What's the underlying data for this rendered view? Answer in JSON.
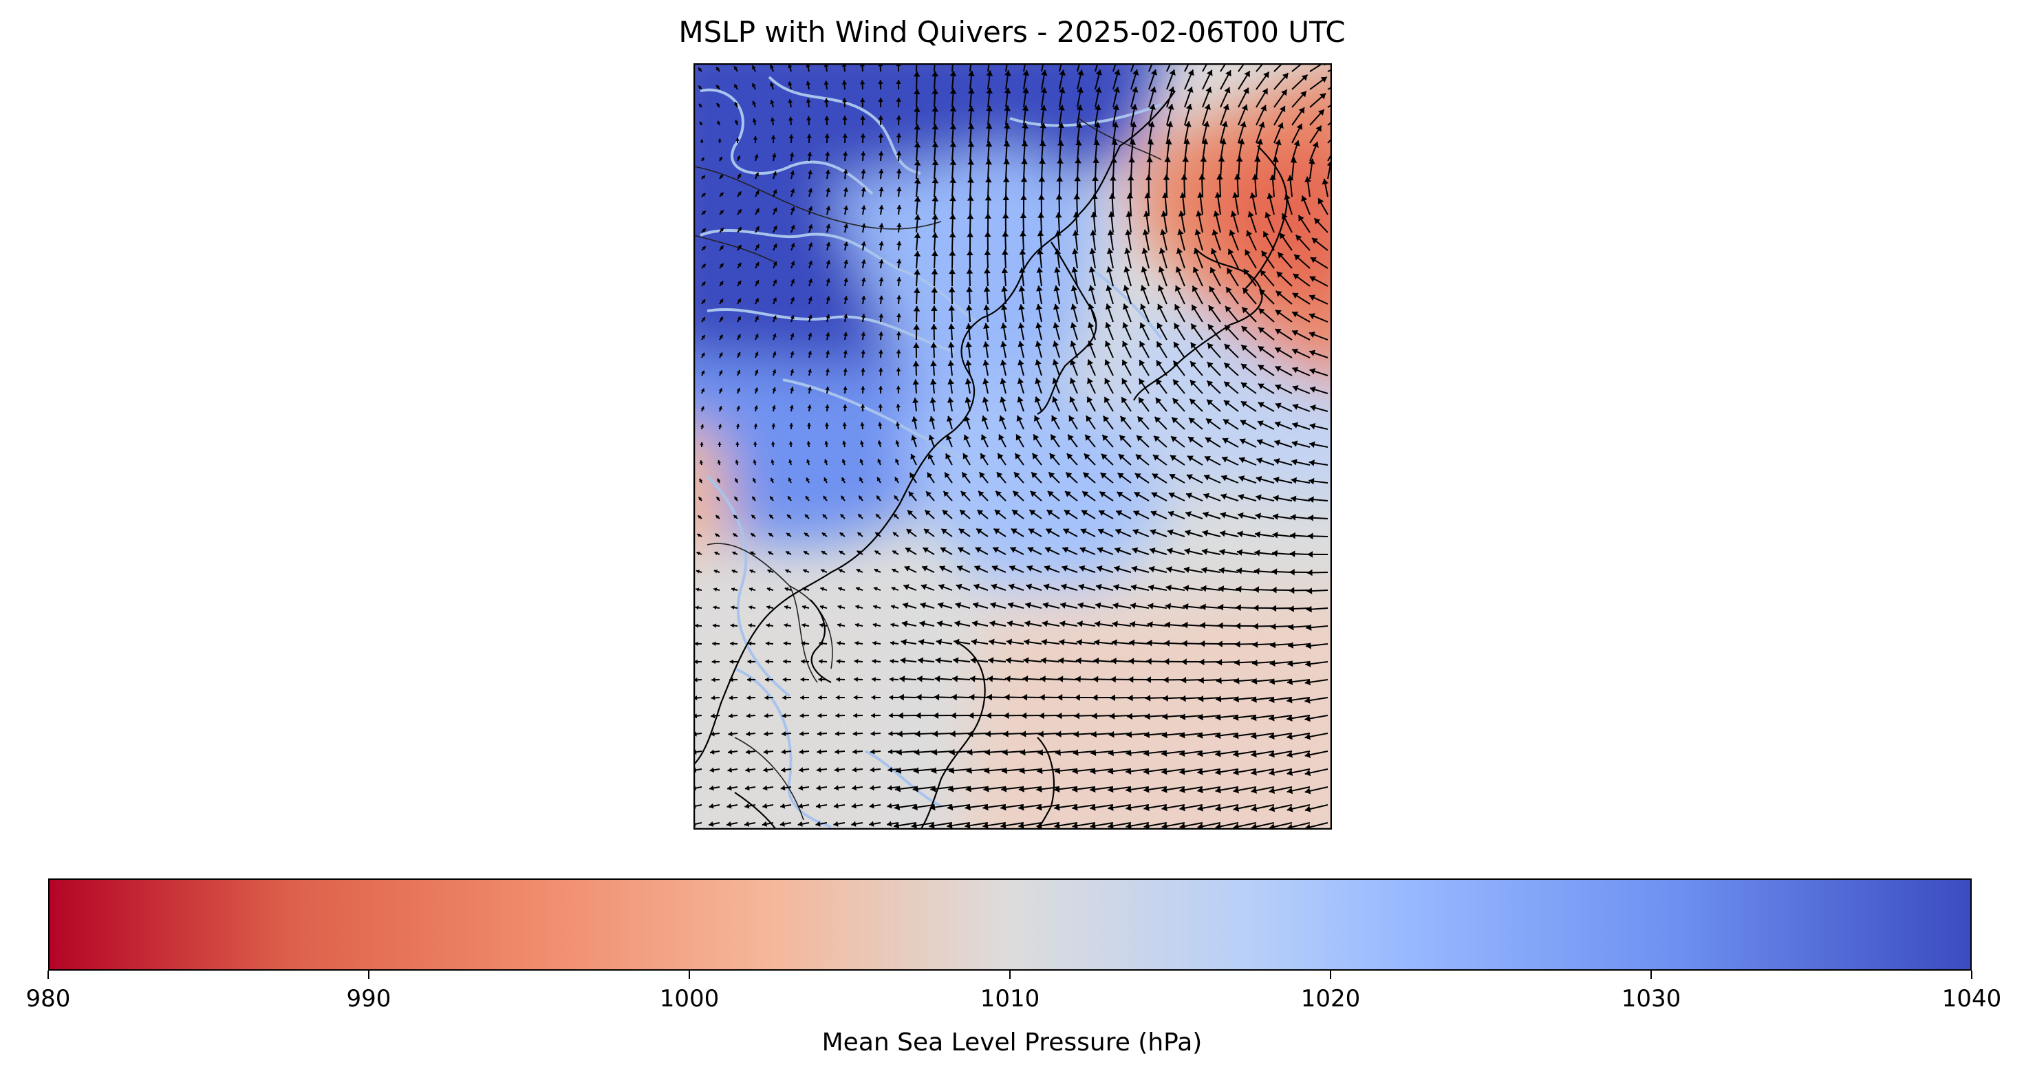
{
  "title": "MSLP with Wind Quivers - 2025-02-06T00 UTC",
  "colorbar": {
    "label": "Mean Sea Level Pressure (hPa)",
    "min": 980,
    "max": 1040,
    "ticks": [
      "980",
      "990",
      "1000",
      "1010",
      "1020",
      "1030",
      "1040"
    ],
    "colormap": "coolwarm_r",
    "stops": [
      "#b40426",
      "#dd604a",
      "#f08a6b",
      "#f5b79a",
      "#dddcdc",
      "#b8cff8",
      "#9abbff",
      "#6d8ff1",
      "#3b4cc0"
    ]
  },
  "map": {
    "fields": [
      "mean sea level pressure (filled)",
      "10m wind (quiver arrows)",
      "coastlines",
      "country borders",
      "rivers"
    ],
    "colors": {
      "high_pressure": "#3b4cc0",
      "mid_pressure": "#dddcdc",
      "low_pressure": "#e9785d",
      "coastline": "#000000",
      "rivers": "#a9c4ec",
      "arrows": "#000000"
    }
  }
}
